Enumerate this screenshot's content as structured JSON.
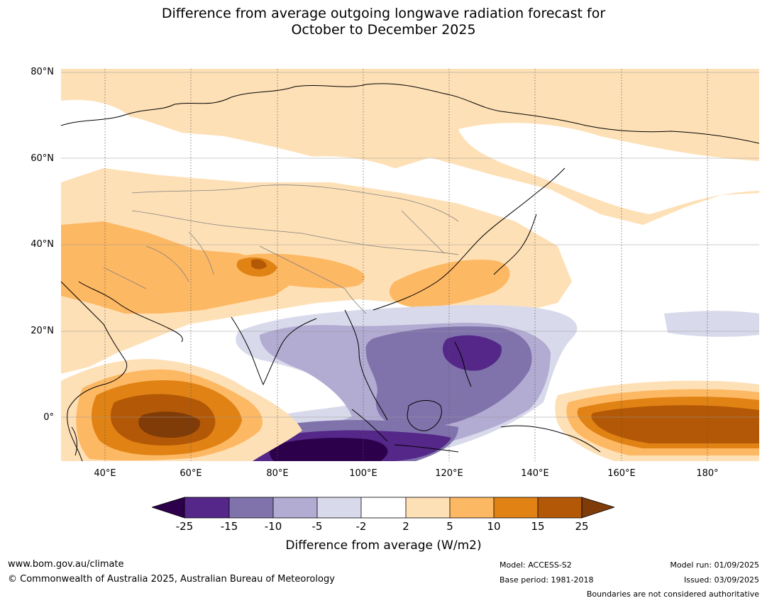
{
  "title": {
    "line1": "Difference from average outgoing longwave radiation forecast for",
    "line2": "October to December 2025"
  },
  "map": {
    "lat_labels": [
      "80°N",
      "60°N",
      "40°N",
      "20°N",
      "0°"
    ],
    "lon_labels": [
      "40°E",
      "60°E",
      "80°E",
      "100°E",
      "120°E",
      "140°E",
      "160°E",
      "180°"
    ],
    "colors": {
      "neg_extreme": "#2d004b",
      "neg_20": "#542788",
      "neg_12": "#8073ac",
      "neg_7": "#b2abd2",
      "neg_3": "#d8daeb",
      "neutral": "#ffffff",
      "pos_3": "#fee0b6",
      "pos_7": "#fdb863",
      "pos_12": "#e08214",
      "pos_20": "#b35806",
      "pos_extreme": "#7f3b08",
      "coast": "#000000",
      "border": "#808080"
    }
  },
  "colorbar": {
    "ticks": [
      "-25",
      "-15",
      "-10",
      "-5",
      "-2",
      "2",
      "5",
      "10",
      "15",
      "25"
    ],
    "label": "Difference from average (W/m2)"
  },
  "footer": {
    "url": "www.bom.gov.au/climate",
    "copyright": "© Commonwealth of Australia 2025, Australian Bureau of Meteorology",
    "model": "Model: ACCESS-S2",
    "base_period": "Base period: 1981-2018",
    "model_run": "Model run: 01/09/2025",
    "issued": "Issued: 03/09/2025",
    "disclaimer": "Boundaries are not considered authoritative"
  }
}
